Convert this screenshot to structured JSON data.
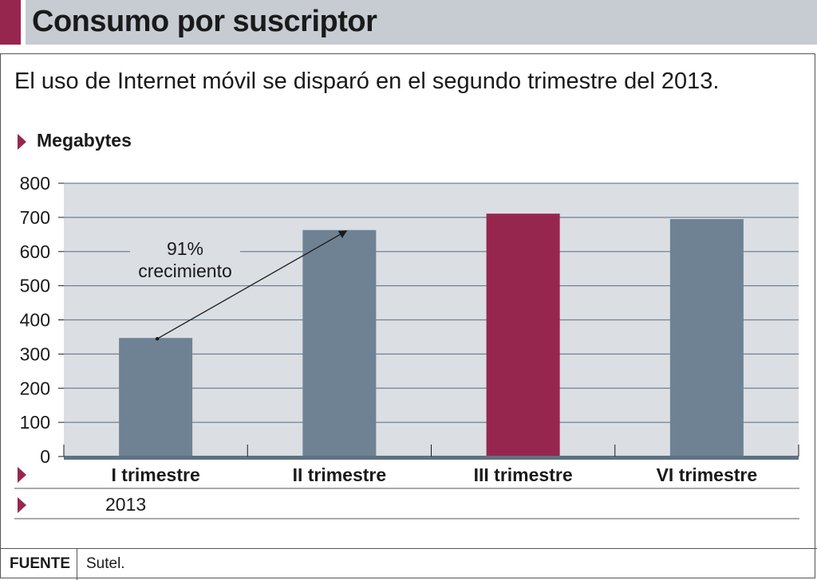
{
  "header": {
    "title": "Consumo por suscriptor"
  },
  "subtitle": "El uso de Internet móvil se disparó en el segundo trimestre del 2013.",
  "chart_data": {
    "type": "bar",
    "ylabel": "Megabytes",
    "categories": [
      "I trimestre",
      "II trimestre",
      "III trimestre",
      "VI trimestre"
    ],
    "values": [
      347,
      663,
      711,
      695
    ],
    "highlight_index": 2,
    "ylim": [
      0,
      800
    ],
    "yticks": [
      0,
      100,
      200,
      300,
      400,
      500,
      600,
      700,
      800
    ],
    "grid": true,
    "year_label": "2013",
    "annotation": {
      "line1": "91%",
      "line2": "crecimiento",
      "from_index": 0,
      "to_index": 1
    },
    "colors": {
      "bar": "#6e8294",
      "highlight": "#97264f",
      "plot_bg": "#dbdee3",
      "grid": "#6f8293",
      "axis": "#5f7182"
    }
  },
  "footer": {
    "source_label": "FUENTE",
    "source_value": "Sutel."
  }
}
